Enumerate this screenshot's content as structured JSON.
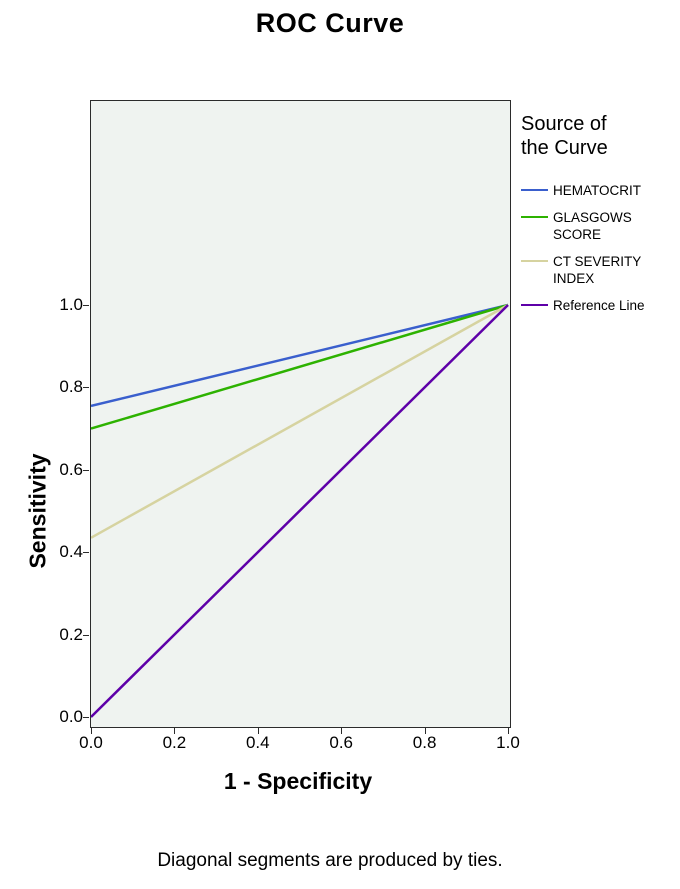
{
  "chart_data": {
    "type": "line",
    "title": "ROC Curve",
    "xlabel": "1 - Specificity",
    "ylabel": "Sensitivity",
    "xlim": [
      0.0,
      1.0
    ],
    "ylim": [
      0.0,
      1.0
    ],
    "x_ticks": [
      "0.0",
      "0.2",
      "0.4",
      "0.6",
      "0.8",
      "1.0"
    ],
    "y_ticks": [
      "0.0",
      "0.2",
      "0.4",
      "0.6",
      "0.8",
      "1.0"
    ],
    "grid": false,
    "plot_background": "#eff3f0",
    "frame_color": "#2b2b2b",
    "legend_title": "Source of the Curve",
    "legend_position": "right",
    "series": [
      {
        "name": "HEMATOCRIT",
        "color": "#3a5fcd",
        "points": [
          [
            0.0,
            0.755
          ],
          [
            1.0,
            1.0
          ]
        ]
      },
      {
        "name": "GLASGOWS SCORE",
        "color": "#2db200",
        "points": [
          [
            0.0,
            0.7
          ],
          [
            1.0,
            1.0
          ]
        ]
      },
      {
        "name": "CT SEVERITY INDEX",
        "color": "#d6d3a0",
        "points": [
          [
            0.0,
            0.435
          ],
          [
            1.0,
            1.0
          ]
        ]
      },
      {
        "name": "Reference Line",
        "color": "#5e00a8",
        "points": [
          [
            0.0,
            0.0
          ],
          [
            1.0,
            1.0
          ]
        ]
      }
    ],
    "footnote": "Diagonal segments are produced by ties."
  }
}
